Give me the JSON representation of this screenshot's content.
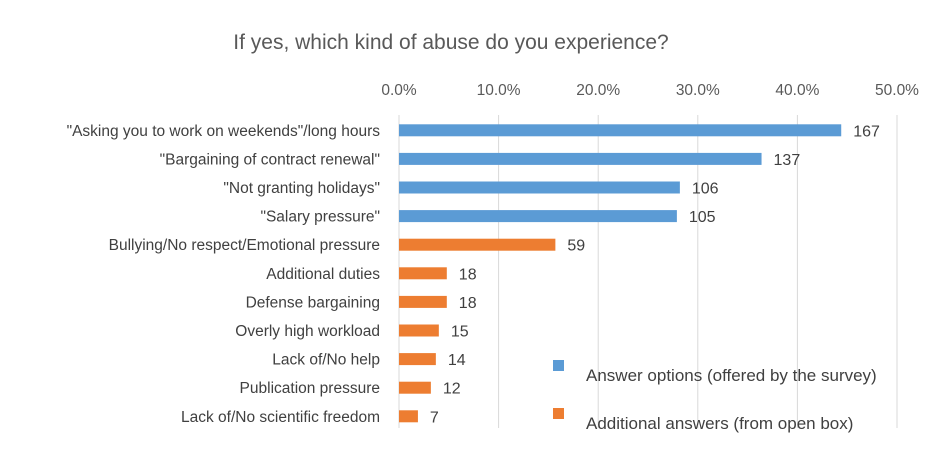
{
  "chart_data": {
    "type": "bar",
    "orientation": "horizontal",
    "title": "If yes, which kind of abuse do you experience?",
    "xlim": [
      0,
      50
    ],
    "xticks": [
      "0.0%",
      "10.0%",
      "20.0%",
      "30.0%",
      "40.0%",
      "50.0%"
    ],
    "tick_values": [
      0,
      10,
      20,
      30,
      40,
      50
    ],
    "categories": [
      "\"Asking you to work on weekends\"/long hours",
      "\"Bargaining of contract renewal\"",
      "\"Not granting holidays\"",
      "\"Salary pressure\"",
      "Bullying/No respect/Emotional pressure",
      "Additional duties",
      "Defense bargaining",
      "Overly high workload",
      "Lack of/No help",
      "Publication pressure",
      "Lack of/No scientific freedom"
    ],
    "percent_values": [
      44.4,
      36.4,
      28.2,
      27.9,
      15.7,
      4.8,
      4.8,
      4.0,
      3.7,
      3.2,
      1.9
    ],
    "data_labels": [
      "167",
      "137",
      "106",
      "105",
      "59",
      "18",
      "18",
      "15",
      "14",
      "12",
      "7"
    ],
    "series_index": [
      0,
      0,
      0,
      0,
      1,
      1,
      1,
      1,
      1,
      1,
      1
    ],
    "series": [
      {
        "name": "Answer options (offered by the survey)",
        "color": "#5b9bd5"
      },
      {
        "name": "Additional answers (from open box)",
        "color": "#ed7d31"
      }
    ],
    "legend_position": "bottom-right"
  }
}
